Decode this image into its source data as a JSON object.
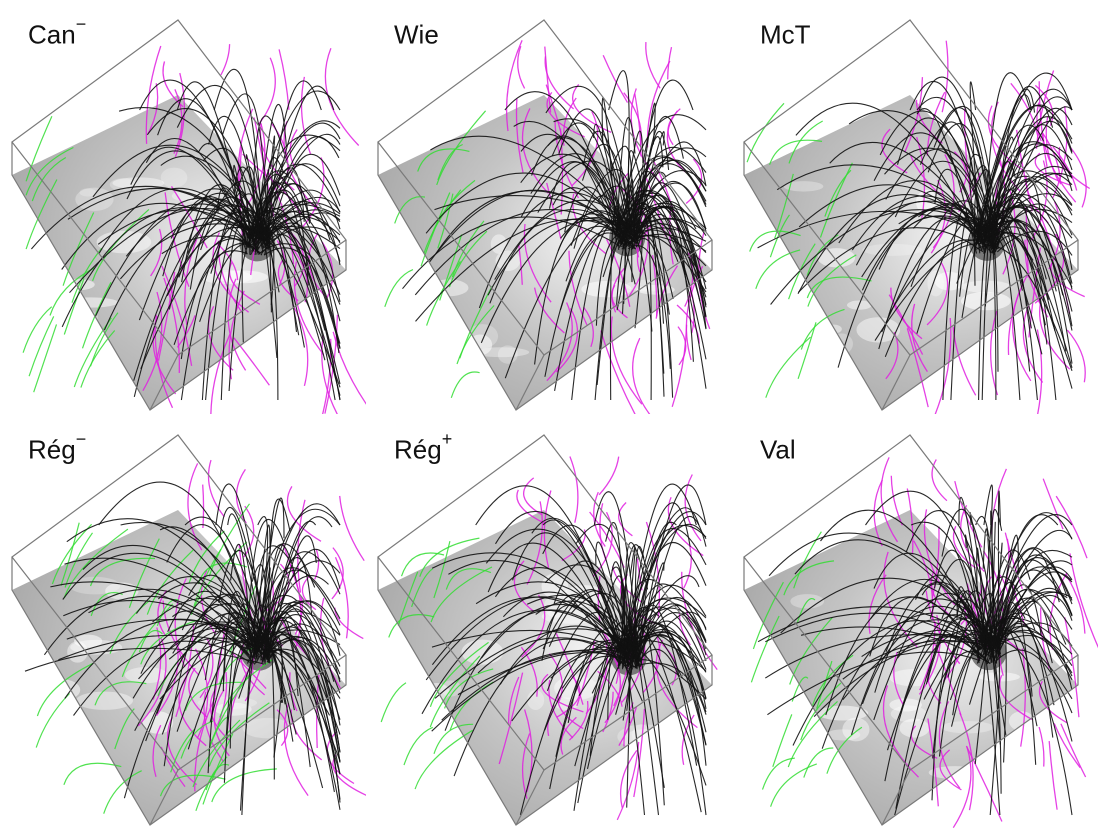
{
  "panels": [
    {
      "name": "Can",
      "sup": "−"
    },
    {
      "name": "Wie",
      "sup": ""
    },
    {
      "name": "McT",
      "sup": ""
    },
    {
      "name": "Rég",
      "sup": "−"
    },
    {
      "name": "Rég",
      "sup": "+"
    },
    {
      "name": "Val",
      "sup": ""
    }
  ],
  "colors": {
    "background": "#ffffff",
    "box_edge": "#7a7a7a",
    "floor": "#b9b9b9",
    "field_line_closed": "#111111",
    "field_line_open_a": "#e020e0",
    "field_line_open_b": "#33dd33"
  }
}
